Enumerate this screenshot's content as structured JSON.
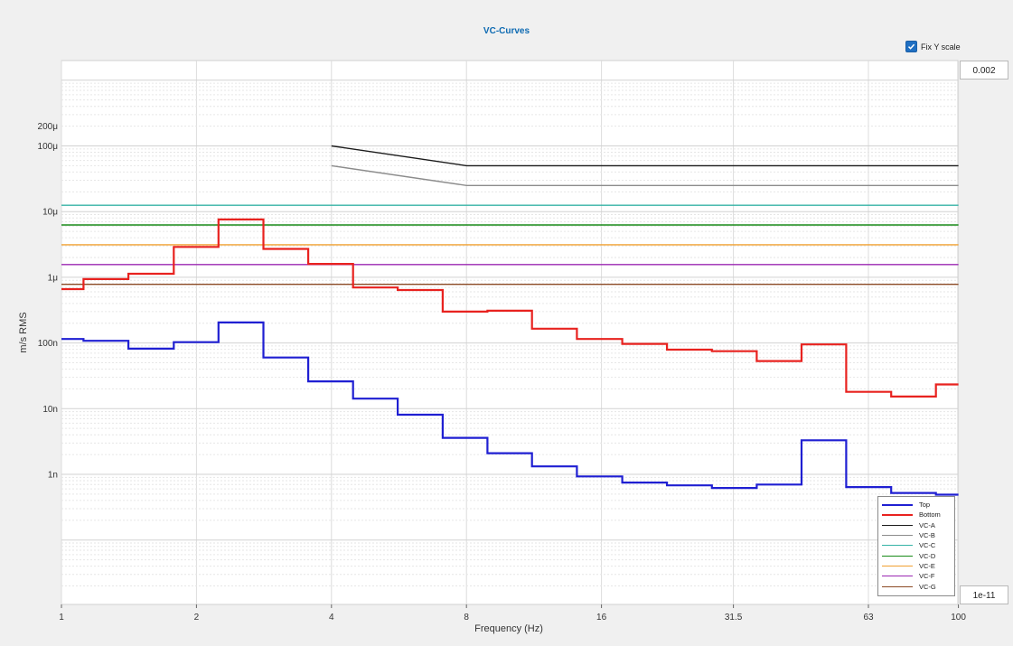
{
  "header": {
    "title": "VC-Curves",
    "fix_y_label": "Fix Y scale",
    "fix_y_checked": true
  },
  "controls": {
    "y_max": "0.002",
    "y_min": "1e-11"
  },
  "chart_data": {
    "type": "line",
    "title": "VC-Curves",
    "xlabel": "Frequency (Hz)",
    "ylabel": "m/s RMS",
    "x_scale": "log2",
    "y_scale": "log10",
    "xlim": [
      1,
      100
    ],
    "ylim": [
      1e-11,
      0.002
    ],
    "x_ticks": [
      "1",
      "2",
      "4",
      "8",
      "16",
      "31.5",
      "63",
      "100"
    ],
    "x_tick_values": [
      1,
      2,
      4,
      8,
      16,
      31.5,
      63,
      100
    ],
    "y_ticks": [
      "1n",
      "10n",
      "100n",
      "1μ",
      "10μ",
      "100μ",
      "200μ"
    ],
    "y_tick_values": [
      1e-09,
      1e-08,
      1e-07,
      1e-06,
      1e-05,
      0.0001,
      0.0002
    ],
    "grid": true,
    "legend_position": "bottom-right",
    "series": [
      {
        "name": "Top",
        "color": "#1f1fd2",
        "step": true,
        "x": [
          1,
          1.12,
          1.41,
          1.78,
          2.24,
          2.82,
          3.55,
          4.47,
          5.62,
          7.08,
          8.91,
          11.2,
          14.1,
          17.8,
          22.4,
          28.2,
          35.5,
          44.7,
          56.2,
          70.8,
          89.1,
          100
        ],
        "y": [
          1.15e-07,
          1.08e-07,
          8.2e-08,
          1.03e-07,
          2.05e-07,
          6e-08,
          2.6e-08,
          1.42e-08,
          8.1e-09,
          3.6e-09,
          2.1e-09,
          1.32e-09,
          9.3e-10,
          7.5e-10,
          6.8e-10,
          6.2e-10,
          7e-10,
          3.3e-09,
          6.4e-10,
          5.2e-10,
          4.9e-10,
          4.9e-10
        ]
      },
      {
        "name": "Bottom",
        "color": "#e8221f",
        "step": true,
        "x": [
          1,
          1.12,
          1.41,
          1.78,
          2.24,
          2.82,
          3.55,
          4.47,
          5.62,
          7.08,
          8.91,
          11.2,
          14.1,
          17.8,
          22.4,
          28.2,
          35.5,
          44.7,
          56.2,
          70.8,
          89.1,
          100
        ],
        "y": [
          6.6e-07,
          9.4e-07,
          1.13e-06,
          2.9e-06,
          7.6e-06,
          2.7e-06,
          1.6e-06,
          7e-07,
          6.4e-07,
          3e-07,
          3.1e-07,
          1.65e-07,
          1.15e-07,
          9.7e-08,
          7.9e-08,
          7.5e-08,
          5.3e-08,
          9.5e-08,
          1.8e-08,
          1.53e-08,
          2.34e-08,
          2.34e-08
        ]
      },
      {
        "name": "VC-A",
        "color": "#1a1a1a",
        "x": [
          4,
          8,
          100
        ],
        "y": [
          0.0001,
          5e-05,
          5e-05
        ]
      },
      {
        "name": "VC-B",
        "color": "#8c8c8c",
        "x": [
          4,
          8,
          100
        ],
        "y": [
          5e-05,
          2.5e-05,
          2.5e-05
        ]
      },
      {
        "name": "VC-C",
        "color": "#35b3a6",
        "x": [
          1,
          100
        ],
        "y": [
          1.25e-05,
          1.25e-05
        ]
      },
      {
        "name": "VC-D",
        "color": "#188a18",
        "x": [
          1,
          100
        ],
        "y": [
          6.25e-06,
          6.25e-06
        ]
      },
      {
        "name": "VC-E",
        "color": "#f0a030",
        "x": [
          1,
          100
        ],
        "y": [
          3.125e-06,
          3.125e-06
        ]
      },
      {
        "name": "VC-F",
        "color": "#9b27b2",
        "x": [
          1,
          100
        ],
        "y": [
          1.5625e-06,
          1.5625e-06
        ]
      },
      {
        "name": "VC-G",
        "color": "#8b4a25",
        "x": [
          1,
          100
        ],
        "y": [
          7.8e-07,
          7.8e-07
        ]
      }
    ]
  }
}
